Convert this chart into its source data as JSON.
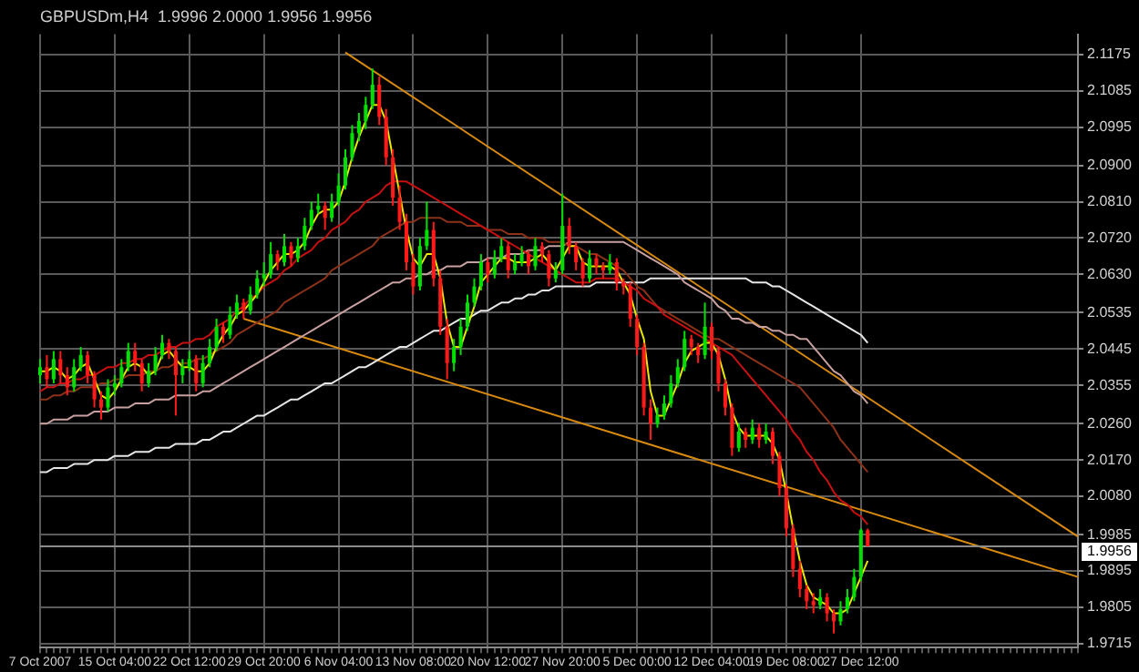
{
  "chart_data": {
    "type": "candlestick",
    "title": "GBPUSDm,H4  1.9996 2.0000 1.9956 1.9956",
    "categories": [
      "7 Oct 2007",
      null,
      null,
      null,
      null,
      null,
      null,
      null,
      null,
      null,
      null,
      "15 Oct 04:00",
      null,
      null,
      null,
      null,
      null,
      null,
      null,
      null,
      null,
      null,
      "22 Oct 12:00",
      null,
      null,
      null,
      null,
      null,
      null,
      null,
      null,
      null,
      null,
      "29 Oct 20:00",
      null,
      null,
      null,
      null,
      null,
      null,
      null,
      null,
      null,
      null,
      "6 Nov 04:00",
      null,
      null,
      null,
      null,
      null,
      null,
      null,
      null,
      null,
      null,
      "13 Nov 08:00",
      null,
      null,
      null,
      null,
      null,
      null,
      null,
      null,
      null,
      null,
      "20 Nov 12:00",
      null,
      null,
      null,
      null,
      null,
      null,
      null,
      null,
      null,
      null,
      "27 Nov 20:00",
      null,
      null,
      null,
      null,
      null,
      null,
      null,
      null,
      null,
      null,
      "5 Dec 00:00",
      null,
      null,
      null,
      null,
      null,
      null,
      null,
      null,
      null,
      null,
      "12 Dec 04:00",
      null,
      null,
      null,
      null,
      null,
      null,
      null,
      null,
      null,
      null,
      "19 Dec 08:00",
      null,
      null,
      null,
      null,
      null,
      null,
      null,
      null,
      null,
      null,
      "27 Dec 12:00",
      null,
      null,
      null,
      null,
      null,
      null,
      null,
      null,
      null,
      null,
      null,
      null,
      null,
      null,
      null,
      null,
      null,
      null,
      null,
      null,
      null,
      null,
      null,
      null,
      null,
      null,
      null,
      null,
      null,
      null,
      null,
      null
    ],
    "ohlc": [
      [
        2.038,
        2.042,
        2.036,
        2.04
      ],
      [
        2.04,
        2.043,
        2.035,
        2.037
      ],
      [
        2.037,
        2.044,
        2.036,
        2.042
      ],
      [
        2.042,
        2.044,
        2.036,
        2.038
      ],
      [
        2.038,
        2.04,
        2.033,
        2.035
      ],
      [
        2.035,
        2.042,
        2.034,
        2.04
      ],
      [
        2.04,
        2.045,
        2.039,
        2.043
      ],
      [
        2.043,
        2.044,
        2.036,
        2.038
      ],
      [
        2.038,
        2.039,
        2.03,
        2.032
      ],
      [
        2.032,
        2.034,
        2.027,
        2.03
      ],
      [
        2.03,
        2.037,
        2.029,
        2.035
      ],
      [
        2.035,
        2.038,
        2.033,
        2.036
      ],
      [
        2.036,
        2.042,
        2.035,
        2.04
      ],
      [
        2.04,
        2.046,
        2.039,
        2.044
      ],
      [
        2.044,
        2.046,
        2.039,
        2.041
      ],
      [
        2.041,
        2.042,
        2.034,
        2.036
      ],
      [
        2.036,
        2.041,
        2.035,
        2.039
      ],
      [
        2.039,
        2.045,
        2.038,
        2.043
      ],
      [
        2.043,
        2.048,
        2.042,
        2.046
      ],
      [
        2.046,
        2.047,
        2.042,
        2.044
      ],
      [
        2.044,
        2.045,
        2.028,
        2.038
      ],
      [
        2.038,
        2.042,
        2.036,
        2.04
      ],
      [
        2.04,
        2.044,
        2.039,
        2.042
      ],
      [
        2.042,
        2.043,
        2.034,
        2.036
      ],
      [
        2.036,
        2.043,
        2.035,
        2.041
      ],
      [
        2.041,
        2.047,
        2.04,
        2.045
      ],
      [
        2.045,
        2.052,
        2.044,
        2.05
      ],
      [
        2.05,
        2.051,
        2.046,
        2.048
      ],
      [
        2.048,
        2.055,
        2.047,
        2.053
      ],
      [
        2.053,
        2.058,
        2.052,
        2.056
      ],
      [
        2.056,
        2.057,
        2.052,
        2.054
      ],
      [
        2.054,
        2.06,
        2.053,
        2.058
      ],
      [
        2.058,
        2.064,
        2.057,
        2.062
      ],
      [
        2.062,
        2.066,
        2.06,
        2.063
      ],
      [
        2.063,
        2.071,
        2.062,
        2.068
      ],
      [
        2.068,
        2.069,
        2.064,
        2.066
      ],
      [
        2.066,
        2.073,
        2.065,
        2.07
      ],
      [
        2.07,
        2.071,
        2.065,
        2.067
      ],
      [
        2.067,
        2.072,
        2.066,
        2.07
      ],
      [
        2.07,
        2.077,
        2.069,
        2.075
      ],
      [
        2.075,
        2.081,
        2.074,
        2.079
      ],
      [
        2.079,
        2.083,
        2.078,
        2.08
      ],
      [
        2.08,
        2.081,
        2.074,
        2.077
      ],
      [
        2.077,
        2.083,
        2.076,
        2.081
      ],
      [
        2.081,
        2.088,
        2.08,
        2.085
      ],
      [
        2.085,
        2.094,
        2.084,
        2.092
      ],
      [
        2.092,
        2.1,
        2.091,
        2.098
      ],
      [
        2.098,
        2.103,
        2.096,
        2.101
      ],
      [
        2.101,
        2.107,
        2.099,
        2.105
      ],
      [
        2.105,
        2.114,
        2.104,
        2.11
      ],
      [
        2.11,
        2.112,
        2.1,
        2.102
      ],
      [
        2.102,
        2.104,
        2.09,
        2.092
      ],
      [
        2.092,
        2.094,
        2.08,
        2.082
      ],
      [
        2.082,
        2.085,
        2.074,
        2.076
      ],
      [
        2.076,
        2.078,
        2.064,
        2.066
      ],
      [
        2.066,
        2.068,
        2.058,
        2.06
      ],
      [
        2.06,
        2.072,
        2.059,
        2.07
      ],
      [
        2.07,
        2.081,
        2.069,
        2.074
      ],
      [
        2.074,
        2.076,
        2.06,
        2.062
      ],
      [
        2.062,
        2.064,
        2.048,
        2.05
      ],
      [
        2.05,
        2.052,
        2.037,
        2.041
      ],
      [
        2.041,
        2.047,
        2.039,
        2.045
      ],
      [
        2.045,
        2.052,
        2.043,
        2.05
      ],
      [
        2.05,
        2.058,
        2.049,
        2.056
      ],
      [
        2.056,
        2.062,
        2.055,
        2.06
      ],
      [
        2.06,
        2.068,
        2.059,
        2.066
      ],
      [
        2.066,
        2.067,
        2.061,
        2.063
      ],
      [
        2.063,
        2.069,
        2.062,
        2.067
      ],
      [
        2.067,
        2.072,
        2.066,
        2.07
      ],
      [
        2.07,
        2.071,
        2.062,
        2.064
      ],
      [
        2.064,
        2.068,
        2.063,
        2.066
      ],
      [
        2.066,
        2.07,
        2.065,
        2.068
      ],
      [
        2.068,
        2.069,
        2.063,
        2.065
      ],
      [
        2.065,
        2.072,
        2.064,
        2.07
      ],
      [
        2.07,
        2.071,
        2.066,
        2.068
      ],
      [
        2.068,
        2.069,
        2.06,
        2.062
      ],
      [
        2.062,
        2.066,
        2.061,
        2.064
      ],
      [
        2.064,
        2.083,
        2.063,
        2.075
      ],
      [
        2.075,
        2.077,
        2.068,
        2.07
      ],
      [
        2.07,
        2.071,
        2.064,
        2.066
      ],
      [
        2.066,
        2.067,
        2.06,
        2.062
      ],
      [
        2.062,
        2.069,
        2.061,
        2.067
      ],
      [
        2.067,
        2.068,
        2.063,
        2.065
      ],
      [
        2.065,
        2.066,
        2.062,
        2.064
      ],
      [
        2.064,
        2.068,
        2.063,
        2.066
      ],
      [
        2.066,
        2.067,
        2.059,
        2.061
      ],
      [
        2.061,
        2.062,
        2.058,
        2.06
      ],
      [
        2.06,
        2.061,
        2.05,
        2.052
      ],
      [
        2.052,
        2.053,
        2.043,
        2.045
      ],
      [
        2.045,
        2.046,
        2.028,
        2.03
      ],
      [
        2.03,
        2.032,
        2.022,
        2.026
      ],
      [
        2.026,
        2.03,
        2.025,
        2.028
      ],
      [
        2.028,
        2.033,
        2.027,
        2.031
      ],
      [
        2.031,
        2.038,
        2.03,
        2.036
      ],
      [
        2.036,
        2.042,
        2.035,
        2.04
      ],
      [
        2.04,
        2.049,
        2.039,
        2.047
      ],
      [
        2.047,
        2.048,
        2.043,
        2.045
      ],
      [
        2.045,
        2.046,
        2.041,
        2.043
      ],
      [
        2.043,
        2.056,
        2.042,
        2.05
      ],
      [
        2.05,
        2.051,
        2.042,
        2.044
      ],
      [
        2.044,
        2.045,
        2.034,
        2.036
      ],
      [
        2.036,
        2.037,
        2.028,
        2.03
      ],
      [
        2.03,
        2.031,
        2.018,
        2.02
      ],
      [
        2.02,
        2.026,
        2.019,
        2.024
      ],
      [
        2.024,
        2.025,
        2.02,
        2.022
      ],
      [
        2.022,
        2.027,
        2.021,
        2.025
      ],
      [
        2.025,
        2.026,
        2.02,
        2.022
      ],
      [
        2.022,
        2.026,
        2.021,
        2.024
      ],
      [
        2.024,
        2.025,
        2.016,
        2.018
      ],
      [
        2.018,
        2.019,
        2.008,
        2.01
      ],
      [
        2.01,
        2.011,
        1.998,
        2.0
      ],
      [
        2.0,
        2.001,
        1.988,
        1.99
      ],
      [
        1.99,
        1.992,
        1.983,
        1.985
      ],
      [
        1.985,
        1.986,
        1.98,
        1.982
      ],
      [
        1.982,
        1.984,
        1.979,
        1.981
      ],
      [
        1.981,
        1.985,
        1.98,
        1.983
      ],
      [
        1.983,
        1.984,
        1.977,
        1.979
      ],
      [
        1.979,
        1.98,
        1.974,
        1.977
      ],
      [
        1.977,
        1.982,
        1.976,
        1.98
      ],
      [
        1.98,
        1.985,
        1.979,
        1.983
      ],
      [
        1.983,
        1.99,
        1.982,
        1.988
      ],
      [
        1.988,
        2.0,
        1.987,
        1.9996
      ],
      [
        1.9996,
        2.0,
        1.9956,
        1.9956
      ],
      null,
      null,
      null,
      null,
      null,
      null,
      null,
      null,
      null,
      null,
      null,
      null,
      null,
      null,
      null,
      null,
      null,
      null,
      null,
      null,
      null,
      null,
      null,
      null,
      null,
      null,
      null,
      null,
      null,
      null,
      null
    ],
    "series": [
      {
        "type": "line",
        "color": "#e8e800",
        "values": [
          2.039,
          2.039,
          2.04,
          2.039,
          2.037,
          2.038,
          2.04,
          2.041,
          2.037,
          2.033,
          2.032,
          2.034,
          2.037,
          2.04,
          2.041,
          2.04,
          2.038,
          2.039,
          2.043,
          2.044,
          2.042,
          2.04,
          2.04,
          2.039,
          2.039,
          2.041,
          2.045,
          2.048,
          2.05,
          2.053,
          2.054,
          2.056,
          2.058,
          2.061,
          2.064,
          2.066,
          2.068,
          2.068,
          2.069,
          2.071,
          2.075,
          2.078,
          2.079,
          2.079,
          2.081,
          2.086,
          2.092,
          2.097,
          2.101,
          2.105,
          2.105,
          2.101,
          2.092,
          2.083,
          2.074,
          2.067,
          2.065,
          2.068,
          2.068,
          2.062,
          2.051,
          2.045,
          2.045,
          2.05,
          2.055,
          2.061,
          2.063,
          2.065,
          2.067,
          2.067,
          2.066,
          2.066,
          2.066,
          2.067,
          2.068,
          2.066,
          2.064,
          2.067,
          2.07,
          2.07,
          2.066,
          2.065,
          2.065,
          2.065,
          2.065,
          2.064,
          2.061,
          2.058,
          2.052,
          2.047,
          2.034,
          2.028,
          2.028,
          2.032,
          2.036,
          2.041,
          2.044,
          2.045,
          2.046,
          2.046,
          2.043,
          2.037,
          2.029,
          2.025,
          2.023,
          2.023,
          2.023,
          2.023,
          2.021,
          2.017,
          2.009,
          2.0,
          1.992,
          1.986,
          1.983,
          1.982,
          1.981,
          1.979,
          1.979,
          1.98,
          1.984,
          1.988,
          1.992,
          null,
          null,
          null,
          null,
          null,
          null,
          null,
          null,
          null,
          null,
          null,
          null,
          null,
          null,
          null,
          null,
          null,
          null,
          null,
          null,
          null,
          null,
          null,
          null,
          null,
          null,
          null,
          null,
          null,
          null,
          null
        ]
      },
      {
        "type": "line",
        "color": "#c81010",
        "values": [
          2.034,
          2.035,
          2.035,
          2.036,
          2.036,
          2.037,
          2.037,
          2.038,
          2.038,
          2.039,
          2.04,
          2.04,
          2.041,
          2.041,
          2.042,
          2.042,
          2.043,
          2.043,
          2.044,
          2.045,
          2.045,
          2.046,
          2.046,
          2.047,
          2.047,
          2.048,
          2.05,
          2.051,
          2.052,
          2.054,
          2.055,
          2.057,
          2.058,
          2.06,
          2.061,
          2.062,
          2.064,
          2.065,
          2.067,
          2.068,
          2.069,
          2.071,
          2.072,
          2.074,
          2.075,
          2.076,
          2.078,
          2.079,
          2.081,
          2.082,
          2.083,
          2.085,
          2.086,
          2.086,
          2.086,
          2.085,
          2.084,
          2.083,
          2.082,
          2.081,
          2.08,
          2.079,
          2.078,
          2.077,
          2.076,
          2.075,
          2.074,
          2.073,
          2.072,
          2.071,
          2.07,
          2.069,
          2.068,
          2.067,
          2.066,
          2.065,
          2.064,
          2.063,
          2.062,
          2.061,
          2.061,
          2.061,
          2.062,
          2.062,
          2.062,
          2.062,
          2.061,
          2.06,
          2.059,
          2.057,
          2.056,
          2.055,
          2.053,
          2.052,
          2.051,
          2.05,
          2.049,
          2.048,
          2.047,
          2.046,
          2.045,
          2.044,
          2.043,
          2.041,
          2.039,
          2.037,
          2.035,
          2.033,
          2.031,
          2.029,
          2.027,
          2.024,
          2.022,
          2.019,
          2.017,
          2.014,
          2.012,
          2.009,
          2.007,
          2.006,
          2.004,
          2.003,
          2.001,
          null,
          null,
          null,
          null,
          null,
          null,
          null,
          null,
          null,
          null,
          null,
          null,
          null,
          null,
          null,
          null,
          null,
          null,
          null,
          null,
          null,
          null,
          null,
          null,
          null,
          null,
          null,
          null,
          null,
          null,
          null
        ]
      },
      {
        "type": "line",
        "color": "#8c3218",
        "values": [
          2.032,
          2.032,
          2.033,
          2.033,
          2.034,
          2.034,
          2.035,
          2.035,
          2.035,
          2.036,
          2.036,
          2.037,
          2.037,
          2.038,
          2.038,
          2.038,
          2.039,
          2.039,
          2.04,
          2.04,
          2.041,
          2.041,
          2.041,
          2.042,
          2.042,
          2.043,
          2.044,
          2.045,
          2.046,
          2.048,
          2.049,
          2.05,
          2.051,
          2.052,
          2.053,
          2.054,
          2.056,
          2.057,
          2.058,
          2.059,
          2.06,
          2.061,
          2.062,
          2.064,
          2.065,
          2.066,
          2.067,
          2.068,
          2.069,
          2.07,
          2.072,
          2.073,
          2.074,
          2.075,
          2.076,
          2.076,
          2.077,
          2.077,
          2.077,
          2.077,
          2.076,
          2.076,
          2.076,
          2.075,
          2.075,
          2.075,
          2.074,
          2.074,
          2.074,
          2.073,
          2.073,
          2.073,
          2.072,
          2.072,
          2.072,
          2.071,
          2.071,
          2.071,
          2.07,
          2.07,
          2.069,
          2.068,
          2.068,
          2.067,
          2.066,
          2.065,
          2.064,
          2.062,
          2.06,
          2.059,
          2.057,
          2.055,
          2.054,
          2.053,
          2.052,
          2.051,
          2.05,
          2.049,
          2.048,
          2.047,
          2.047,
          2.046,
          2.045,
          2.044,
          2.043,
          2.042,
          2.041,
          2.04,
          2.039,
          2.038,
          2.037,
          2.036,
          2.035,
          2.033,
          2.031,
          2.029,
          2.027,
          2.025,
          2.022,
          2.02,
          2.018,
          2.016,
          2.014,
          null,
          null,
          null,
          null,
          null,
          null,
          null,
          null,
          null,
          null,
          null,
          null,
          null,
          null,
          null,
          null,
          null,
          null,
          null,
          null,
          null,
          null,
          null,
          null,
          null,
          null,
          null,
          null,
          null,
          null,
          null
        ]
      },
      {
        "type": "line",
        "color": "#c8a0a0",
        "values": [
          2.026,
          2.026,
          2.027,
          2.027,
          2.027,
          2.028,
          2.028,
          2.028,
          2.029,
          2.029,
          2.029,
          2.03,
          2.03,
          2.03,
          2.031,
          2.031,
          2.031,
          2.032,
          2.032,
          2.032,
          2.033,
          2.033,
          2.033,
          2.033,
          2.034,
          2.034,
          2.035,
          2.036,
          2.037,
          2.038,
          2.039,
          2.04,
          2.041,
          2.042,
          2.043,
          2.044,
          2.045,
          2.046,
          2.047,
          2.048,
          2.049,
          2.05,
          2.051,
          2.052,
          2.053,
          2.054,
          2.055,
          2.056,
          2.057,
          2.058,
          2.059,
          2.06,
          2.061,
          2.061,
          2.062,
          2.062,
          2.063,
          2.063,
          2.064,
          2.064,
          2.065,
          2.065,
          2.065,
          2.066,
          2.066,
          2.066,
          2.067,
          2.067,
          2.067,
          2.068,
          2.068,
          2.068,
          2.069,
          2.069,
          2.069,
          2.07,
          2.07,
          2.07,
          2.071,
          2.071,
          2.071,
          2.071,
          2.071,
          2.071,
          2.071,
          2.071,
          2.071,
          2.07,
          2.069,
          2.068,
          2.067,
          2.066,
          2.065,
          2.064,
          2.063,
          2.061,
          2.06,
          2.059,
          2.058,
          2.057,
          2.055,
          2.054,
          2.052,
          2.052,
          2.051,
          2.051,
          2.05,
          2.05,
          2.049,
          2.049,
          2.048,
          2.048,
          2.047,
          2.047,
          2.045,
          2.043,
          2.041,
          2.039,
          2.038,
          2.036,
          2.034,
          2.033,
          2.031,
          null,
          null,
          null,
          null,
          null,
          null,
          null,
          null,
          null,
          null,
          null,
          null,
          null,
          null,
          null,
          null,
          null,
          null,
          null,
          null,
          null,
          null,
          null,
          null,
          null,
          null,
          null,
          null,
          null,
          null,
          null
        ]
      },
      {
        "type": "line",
        "color": "#e6e6e6",
        "values": [
          2.014,
          2.014,
          2.015,
          2.015,
          2.015,
          2.016,
          2.016,
          2.016,
          2.017,
          2.017,
          2.017,
          2.018,
          2.018,
          2.018,
          2.019,
          2.019,
          2.019,
          2.02,
          2.02,
          2.02,
          2.021,
          2.021,
          2.021,
          2.021,
          2.022,
          2.022,
          2.023,
          2.024,
          2.024,
          2.025,
          2.026,
          2.027,
          2.028,
          2.028,
          2.029,
          2.03,
          2.031,
          2.032,
          2.032,
          2.033,
          2.034,
          2.035,
          2.036,
          2.036,
          2.037,
          2.038,
          2.039,
          2.04,
          2.04,
          2.041,
          2.042,
          2.043,
          2.044,
          2.045,
          2.045,
          2.046,
          2.047,
          2.048,
          2.049,
          2.049,
          2.05,
          2.051,
          2.052,
          2.052,
          2.053,
          2.054,
          2.054,
          2.055,
          2.056,
          2.056,
          2.057,
          2.057,
          2.058,
          2.058,
          2.059,
          2.059,
          2.06,
          2.06,
          2.06,
          2.06,
          2.06,
          2.06,
          2.061,
          2.061,
          2.061,
          2.061,
          2.061,
          2.061,
          2.061,
          2.061,
          2.062,
          2.062,
          2.062,
          2.062,
          2.062,
          2.062,
          2.062,
          2.062,
          2.062,
          2.062,
          2.062,
          2.062,
          2.062,
          2.062,
          2.062,
          2.061,
          2.061,
          2.061,
          2.06,
          2.06,
          2.059,
          2.058,
          2.057,
          2.056,
          2.055,
          2.054,
          2.053,
          2.052,
          2.051,
          2.05,
          2.049,
          2.048,
          2.046,
          null,
          null,
          null,
          null,
          null,
          null,
          null,
          null,
          null,
          null,
          null,
          null,
          null,
          null,
          null,
          null,
          null,
          null,
          null,
          null,
          null,
          null,
          null,
          null,
          null,
          null,
          null,
          null,
          null,
          null,
          null
        ]
      },
      {
        "type": "line",
        "color": "#d88a10",
        "values": [
          null,
          null,
          null,
          null,
          null,
          null,
          null,
          null,
          null,
          null,
          null,
          null,
          null,
          null,
          null,
          null,
          null,
          null,
          null,
          null,
          null,
          null,
          null,
          null,
          null,
          null,
          null,
          null,
          null,
          null,
          null,
          null,
          null,
          null,
          null,
          null,
          null,
          null,
          null,
          null,
          null,
          null,
          null,
          null,
          null,
          2.118,
          null,
          null,
          null,
          null,
          null,
          null,
          null,
          null,
          null,
          null,
          null,
          null,
          null,
          null,
          null,
          null,
          null,
          null,
          null,
          null,
          null,
          null,
          null,
          null,
          null,
          null,
          null,
          null,
          null,
          null,
          null,
          null,
          null,
          null,
          null,
          null,
          null,
          null,
          null,
          null,
          null,
          null,
          null,
          null,
          null,
          null,
          null,
          null,
          null,
          null,
          null,
          null,
          null,
          null,
          null,
          null,
          null,
          null,
          null,
          null,
          null,
          null,
          null,
          null,
          null,
          null,
          null,
          null,
          null,
          null,
          null,
          null,
          null,
          null,
          null,
          null,
          null,
          null,
          null,
          null,
          null,
          null,
          null,
          null,
          null,
          null,
          null,
          null,
          null,
          null,
          null,
          null,
          null,
          null,
          null,
          null,
          null,
          null,
          null,
          null,
          null,
          null,
          null,
          null,
          null,
          null,
          null,
          1.998
        ]
      },
      {
        "type": "line",
        "color": "#d88a10",
        "values": [
          null,
          null,
          null,
          null,
          null,
          null,
          null,
          null,
          null,
          null,
          null,
          null,
          null,
          null,
          null,
          null,
          null,
          null,
          null,
          null,
          null,
          null,
          null,
          null,
          null,
          null,
          null,
          null,
          null,
          null,
          2.052,
          null,
          null,
          null,
          null,
          null,
          null,
          null,
          null,
          null,
          null,
          null,
          null,
          null,
          null,
          null,
          null,
          null,
          null,
          null,
          null,
          null,
          null,
          null,
          null,
          null,
          null,
          null,
          null,
          null,
          null,
          null,
          null,
          null,
          null,
          null,
          null,
          null,
          null,
          null,
          null,
          null,
          null,
          null,
          null,
          null,
          null,
          null,
          null,
          null,
          null,
          null,
          null,
          null,
          null,
          null,
          null,
          null,
          null,
          null,
          null,
          null,
          null,
          null,
          null,
          null,
          null,
          null,
          null,
          null,
          null,
          null,
          null,
          null,
          null,
          null,
          null,
          null,
          null,
          null,
          null,
          null,
          null,
          null,
          null,
          null,
          null,
          null,
          null,
          null,
          null,
          null,
          null,
          null,
          null,
          null,
          null,
          null,
          null,
          null,
          null,
          null,
          null,
          null,
          null,
          null,
          null,
          null,
          null,
          null,
          null,
          null,
          null,
          null,
          null,
          null,
          null,
          null,
          null,
          null,
          null,
          null,
          null,
          1.988
        ]
      }
    ],
    "ylim": [
      1.9705,
      2.1225
    ],
    "yticks": [
      2.1175,
      2.1085,
      2.0995,
      {
        "value": 2.09,
        "label": "2.0900"
      },
      {
        "value": 2.081,
        "label": "2.0810"
      },
      {
        "value": 2.072,
        "label": "2.0720"
      },
      {
        "value": 2.063,
        "label": "2.0630"
      },
      2.0535,
      2.0445,
      2.0355,
      {
        "value": 2.026,
        "label": "2.0260"
      },
      {
        "value": 2.017,
        "label": "2.0170"
      },
      {
        "value": 2.008,
        "label": "2.0080"
      },
      1.9985,
      1.9895,
      1.9805,
      1.9715
    ],
    "ref_lines": [
      {
        "axis": "y",
        "value": 1.9956,
        "label": "1.9956",
        "color": "#8c8c8c"
      }
    ],
    "grid": true,
    "legend": false
  }
}
